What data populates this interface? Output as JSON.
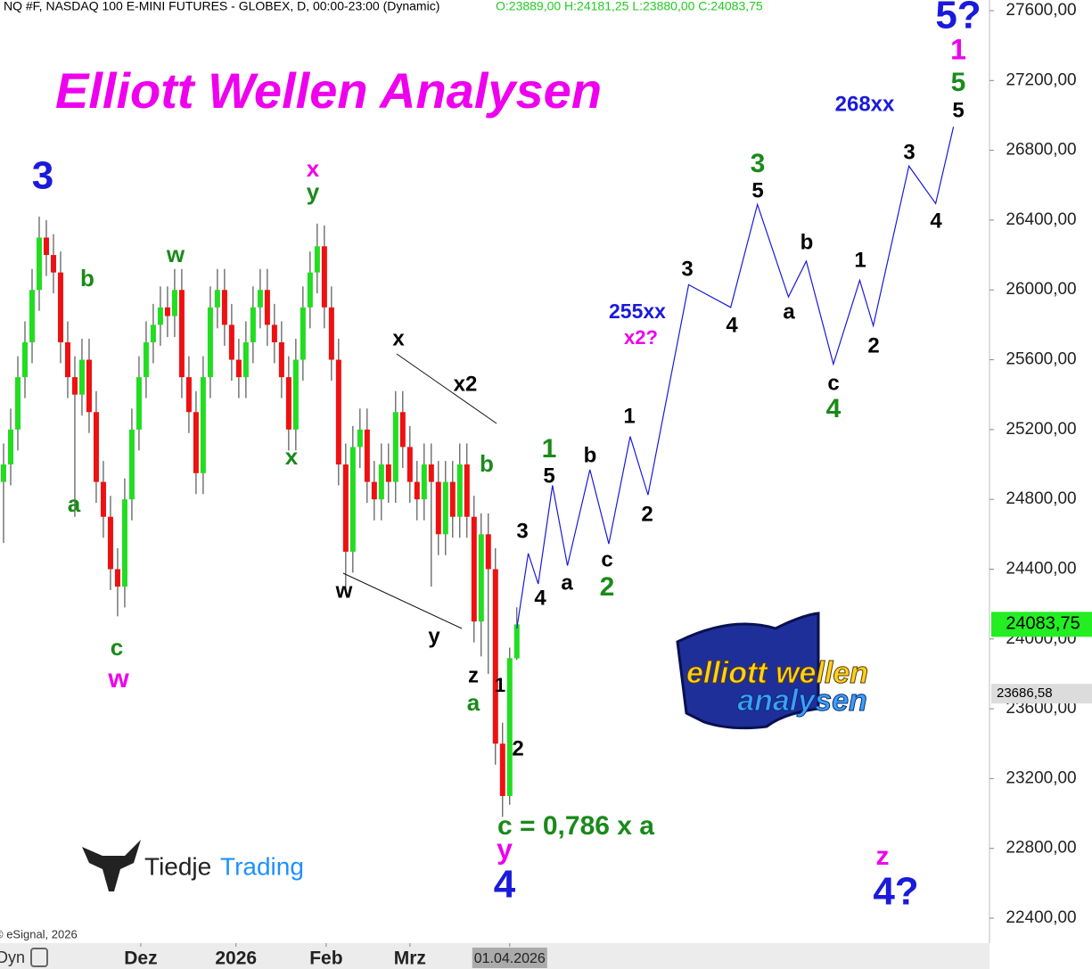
{
  "chart_data": {
    "type": "candlestick",
    "header": "NQ #F, NASDAQ 100 E-MINI FUTURES - GLOBEX, D, 00:00-23:00 (Dynamic)",
    "header_ohlc": "O:23889,00 H:24181,25 L:23880,00 C:24083,75",
    "title": "Elliott Wellen Analysen",
    "copyright": "© eSignal, 2026",
    "mode": "Dyn",
    "up_color": "#22dd22",
    "down_color": "#ee1111",
    "open": [
      24900,
      25000,
      25200,
      25500,
      25700,
      26000,
      26300,
      26200,
      26100,
      25700,
      25500,
      25400,
      25600,
      25300,
      24900,
      24700,
      24400,
      24300,
      24800,
      25200,
      25500,
      25700,
      25800,
      25900,
      25850,
      26000,
      25500,
      25300,
      24950,
      25500,
      25900,
      26000,
      25800,
      25600,
      25500,
      25700,
      25900,
      26000,
      25800,
      25700,
      25500,
      25200,
      25600,
      25900,
      26100,
      26250,
      25900,
      25600,
      25000,
      24500,
      25100,
      25200,
      24900,
      24800,
      25000,
      24900,
      25300,
      25100,
      24900,
      24800,
      25000,
      24900,
      24600,
      24900,
      24700,
      25000,
      24700,
      24100,
      24600,
      24400,
      23400,
      23100,
      23889
    ],
    "high": [
      25120,
      25320,
      25620,
      25820,
      26120,
      26420,
      26400,
      26320,
      26220,
      25820,
      25620,
      25720,
      25720,
      25420,
      25020,
      24820,
      24520,
      24920,
      25320,
      25620,
      25820,
      25920,
      26020,
      26020,
      26120,
      26120,
      25620,
      25420,
      25620,
      26020,
      26120,
      26120,
      25920,
      25720,
      25820,
      26020,
      26120,
      26120,
      25920,
      25820,
      25620,
      25720,
      26020,
      26220,
      26380,
      26370,
      26020,
      25720,
      25120,
      25220,
      25320,
      25320,
      25020,
      25120,
      25120,
      25420,
      25420,
      25220,
      25020,
      25120,
      25120,
      25020,
      25020,
      25020,
      25120,
      25120,
      24820,
      24720,
      24720,
      24520,
      23520,
      23950,
      24181.25
    ],
    "low": [
      24550,
      24880,
      25080,
      25380,
      25580,
      25880,
      26080,
      25980,
      25580,
      25380,
      24700,
      25280,
      25180,
      24780,
      24580,
      24280,
      24130,
      24180,
      24680,
      25080,
      25380,
      25580,
      25680,
      25730,
      25730,
      25380,
      25180,
      24830,
      24830,
      25380,
      25780,
      25680,
      25480,
      25380,
      25380,
      25580,
      25780,
      25680,
      25580,
      25380,
      25080,
      25080,
      25480,
      25780,
      25980,
      25780,
      25480,
      24880,
      24250,
      24380,
      24980,
      24780,
      24680,
      24680,
      24780,
      24780,
      24980,
      24780,
      24680,
      24680,
      24300,
      24480,
      24480,
      24580,
      24580,
      24580,
      23980,
      23900,
      23800,
      23280,
      22980,
      23050,
      23880
    ],
    "close": [
      25000,
      25200,
      25500,
      25700,
      26000,
      26300,
      26200,
      26100,
      25700,
      25500,
      25400,
      25600,
      25300,
      24900,
      24700,
      24400,
      24300,
      24800,
      25200,
      25500,
      25700,
      25800,
      25900,
      25850,
      26000,
      25500,
      25300,
      24950,
      25500,
      25900,
      26000,
      25800,
      25600,
      25500,
      25700,
      25900,
      26000,
      25800,
      25700,
      25500,
      25200,
      25600,
      25900,
      26100,
      26250,
      25900,
      25600,
      25000,
      24500,
      25100,
      25200,
      24900,
      24800,
      25000,
      24900,
      25300,
      25100,
      24900,
      24800,
      25000,
      24900,
      24600,
      24900,
      24700,
      25000,
      24700,
      24100,
      24600,
      24400,
      23400,
      23100,
      23890,
      24083.75
    ],
    "projection": {
      "color": "#1a1adb",
      "x": [
        72,
        73.6,
        75,
        77,
        79.1,
        82.25,
        84.9,
        87.9,
        90.4,
        96.1,
        102,
        105.75,
        110.1,
        112.6,
        116.4,
        120.1,
        122,
        127,
        130.75,
        133.25
      ],
      "values": [
        24060,
        24490,
        24315,
        24880,
        24420,
        24970,
        24545,
        25160,
        24825,
        26030,
        25900,
        26490,
        25960,
        26165,
        25575,
        26055,
        25795,
        26710,
        26495,
        26935
      ]
    },
    "xlim": [
      -0.5,
      138.3
    ],
    "ylim": [
      22280,
      27680
    ],
    "xticks": [
      {
        "value": 19.25,
        "label": "Dez"
      },
      {
        "value": 32.6,
        "label": "2026"
      },
      {
        "value": 45.25,
        "label": "Feb"
      },
      {
        "value": 57,
        "label": "Mrz"
      },
      {
        "value": 71,
        "label": "01.04.2026"
      }
    ],
    "yticks": [
      {
        "value": 22400,
        "label": "22400,00"
      },
      {
        "value": 22800,
        "label": "22800,00"
      },
      {
        "value": 23200,
        "label": "23200,00"
      },
      {
        "value": 23600,
        "label": "23600,00"
      },
      {
        "value": 24000,
        "label": "24000,00"
      },
      {
        "value": 24400,
        "label": "24400,00"
      },
      {
        "value": 24800,
        "label": "24800,00"
      },
      {
        "value": 25200,
        "label": "25200,00"
      },
      {
        "value": 25600,
        "label": "25600,00"
      },
      {
        "value": 26000,
        "label": "26000,00"
      },
      {
        "value": 26400,
        "label": "26400,00"
      },
      {
        "value": 26800,
        "label": "26800,00"
      },
      {
        "value": 27200,
        "label": "27200,00"
      },
      {
        "value": 27600,
        "label": "27600,00"
      }
    ],
    "last_price": {
      "value": 24083.75,
      "label": "24083,75"
    },
    "marker_price": {
      "value": 23686.58,
      "label": "23686,58"
    },
    "annotations": [
      {
        "text": "3",
        "color": "#1a1adb"
      },
      {
        "text": "b",
        "color": "#1a8a1a"
      },
      {
        "text": "w",
        "color": "#1a8a1a"
      },
      {
        "text": "x",
        "color": "#ee00ee"
      },
      {
        "text": "y",
        "color": "#1a8a1a"
      },
      {
        "text": "a",
        "color": "#1a8a1a"
      },
      {
        "text": "c",
        "color": "#1a8a1a"
      },
      {
        "text": "w",
        "color": "#ee00ee"
      },
      {
        "text": "x",
        "color": "#1a8a1a"
      },
      {
        "text": "x",
        "color": "#000000"
      },
      {
        "text": "x2",
        "color": "#000000"
      },
      {
        "text": "w",
        "color": "#000000"
      },
      {
        "text": "y",
        "color": "#000000"
      },
      {
        "text": "b",
        "color": "#1a8a1a"
      },
      {
        "text": "z",
        "color": "#000000"
      },
      {
        "text": "a",
        "color": "#1a8a1a"
      },
      {
        "text": "1",
        "color": "#000000"
      },
      {
        "text": "2",
        "color": "#000000"
      },
      {
        "text": "c = 0,786 x a",
        "color": "#1a8a1a"
      },
      {
        "text": "y",
        "color": "#ee00ee"
      },
      {
        "text": "4",
        "color": "#1a1adb"
      },
      {
        "text": "3",
        "color": "#000000"
      },
      {
        "text": "4",
        "color": "#000000"
      },
      {
        "text": "1",
        "color": "#1a8a1a"
      },
      {
        "text": "5",
        "color": "#000000"
      },
      {
        "text": "a",
        "color": "#000000"
      },
      {
        "text": "b",
        "color": "#000000"
      },
      {
        "text": "c",
        "color": "#000000"
      },
      {
        "text": "2",
        "color": "#1a8a1a"
      },
      {
        "text": "1",
        "color": "#000000"
      },
      {
        "text": "2",
        "color": "#000000"
      },
      {
        "text": "255xx",
        "color": "#1a1adb"
      },
      {
        "text": "x2?",
        "color": "#ee00ee"
      },
      {
        "text": "3",
        "color": "#000000"
      },
      {
        "text": "4",
        "color": "#000000"
      },
      {
        "text": "3",
        "color": "#1a8a1a"
      },
      {
        "text": "5",
        "color": "#000000"
      },
      {
        "text": "b",
        "color": "#000000"
      },
      {
        "text": "a",
        "color": "#000000"
      },
      {
        "text": "c",
        "color": "#000000"
      },
      {
        "text": "4",
        "color": "#1a8a1a"
      },
      {
        "text": "1",
        "color": "#000000"
      },
      {
        "text": "2",
        "color": "#000000"
      },
      {
        "text": "3",
        "color": "#000000"
      },
      {
        "text": "4",
        "color": "#000000"
      },
      {
        "text": "268xx",
        "color": "#1a1adb"
      },
      {
        "text": "5?",
        "color": "#1a1adb"
      },
      {
        "text": "1",
        "color": "#ee00ee"
      },
      {
        "text": "5",
        "color": "#1a8a1a"
      },
      {
        "text": "5",
        "color": "#000000"
      },
      {
        "text": "z",
        "color": "#ee00ee"
      },
      {
        "text": "4?",
        "color": "#1a1adb"
      }
    ],
    "logo_left_a": "Tiedje",
    "logo_left_b": "Trading",
    "logo_right_top": "elliott wellen",
    "logo_right_bottom": "analysen"
  }
}
